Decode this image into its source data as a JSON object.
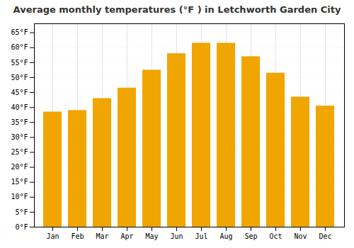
{
  "chart_data": {
    "type": "bar",
    "title": "Average monthly temperatures (°F ) in Letchworth Garden City",
    "categories": [
      "Jan",
      "Feb",
      "Mar",
      "Apr",
      "May",
      "Jun",
      "Jul",
      "Aug",
      "Sep",
      "Oct",
      "Nov",
      "Dec"
    ],
    "values": [
      38.5,
      39.0,
      43.0,
      46.5,
      52.5,
      58.0,
      61.5,
      61.5,
      57.0,
      51.5,
      43.5,
      40.5
    ],
    "color": "#F0A500",
    "ylim": [
      0,
      68
    ],
    "yticks": [
      {
        "value": 0,
        "label": "0°F"
      },
      {
        "value": 5,
        "label": "5°F"
      },
      {
        "value": 10,
        "label": "10°F"
      },
      {
        "value": 15,
        "label": "15°F"
      },
      {
        "value": 20,
        "label": "20°F"
      },
      {
        "value": 25,
        "label": "25°F"
      },
      {
        "value": 30,
        "label": "30°F"
      },
      {
        "value": 35,
        "label": "35°F"
      },
      {
        "value": 40,
        "label": "40°F"
      },
      {
        "value": 45,
        "label": "45°F"
      },
      {
        "value": 50,
        "label": "50°F"
      },
      {
        "value": 55,
        "label": "55°F"
      },
      {
        "value": 60,
        "label": "60°F"
      },
      {
        "value": 65,
        "label": "65°F"
      }
    ],
    "grid": true
  }
}
